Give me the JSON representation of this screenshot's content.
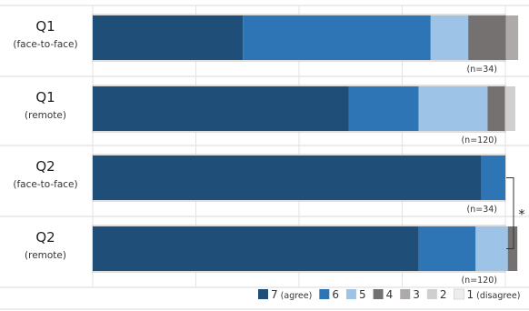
{
  "chart_data": {
    "type": "bar",
    "orientation": "horizontal",
    "stacked": true,
    "normalized": true,
    "categories": [
      {
        "label": "Q1",
        "sublabel": "(face-to-face)",
        "n": "(n=34)"
      },
      {
        "label": "Q1",
        "sublabel": "(remote)",
        "n": "(n=120)"
      },
      {
        "label": "Q2",
        "sublabel": "(face-to-face)",
        "n": "(n=34)"
      },
      {
        "label": "Q2",
        "sublabel": "(remote)",
        "n": "(n=120)"
      }
    ],
    "series": [
      {
        "name": "7",
        "note": "(agree)",
        "color": "#1f4e79",
        "values": [
          36.4,
          62.0,
          94.2,
          79.0
        ]
      },
      {
        "name": "6",
        "note": "",
        "color": "#2e75b6",
        "values": [
          45.5,
          17.0,
          5.8,
          13.8
        ]
      },
      {
        "name": "5",
        "note": "",
        "color": "#9dc3e6",
        "values": [
          9.1,
          16.7,
          0,
          7.8
        ]
      },
      {
        "name": "4",
        "note": "",
        "color": "#767171",
        "values": [
          9.1,
          4.2,
          0,
          2.3
        ]
      },
      {
        "name": "3",
        "note": "",
        "color": "#aeaaaa",
        "values": [
          3.0,
          0,
          0,
          0
        ]
      },
      {
        "name": "2",
        "note": "",
        "color": "#d0cece",
        "values": [
          0,
          2.5,
          0,
          0
        ]
      },
      {
        "name": "1",
        "note": "(disagree)",
        "color": "#ededed",
        "values": [
          0,
          0,
          0,
          0
        ]
      }
    ],
    "xlim": [
      0,
      100
    ],
    "grid": "vertical",
    "legend_position": "bottom-right",
    "significance": {
      "between": [
        2,
        3
      ],
      "marker": "*"
    }
  }
}
